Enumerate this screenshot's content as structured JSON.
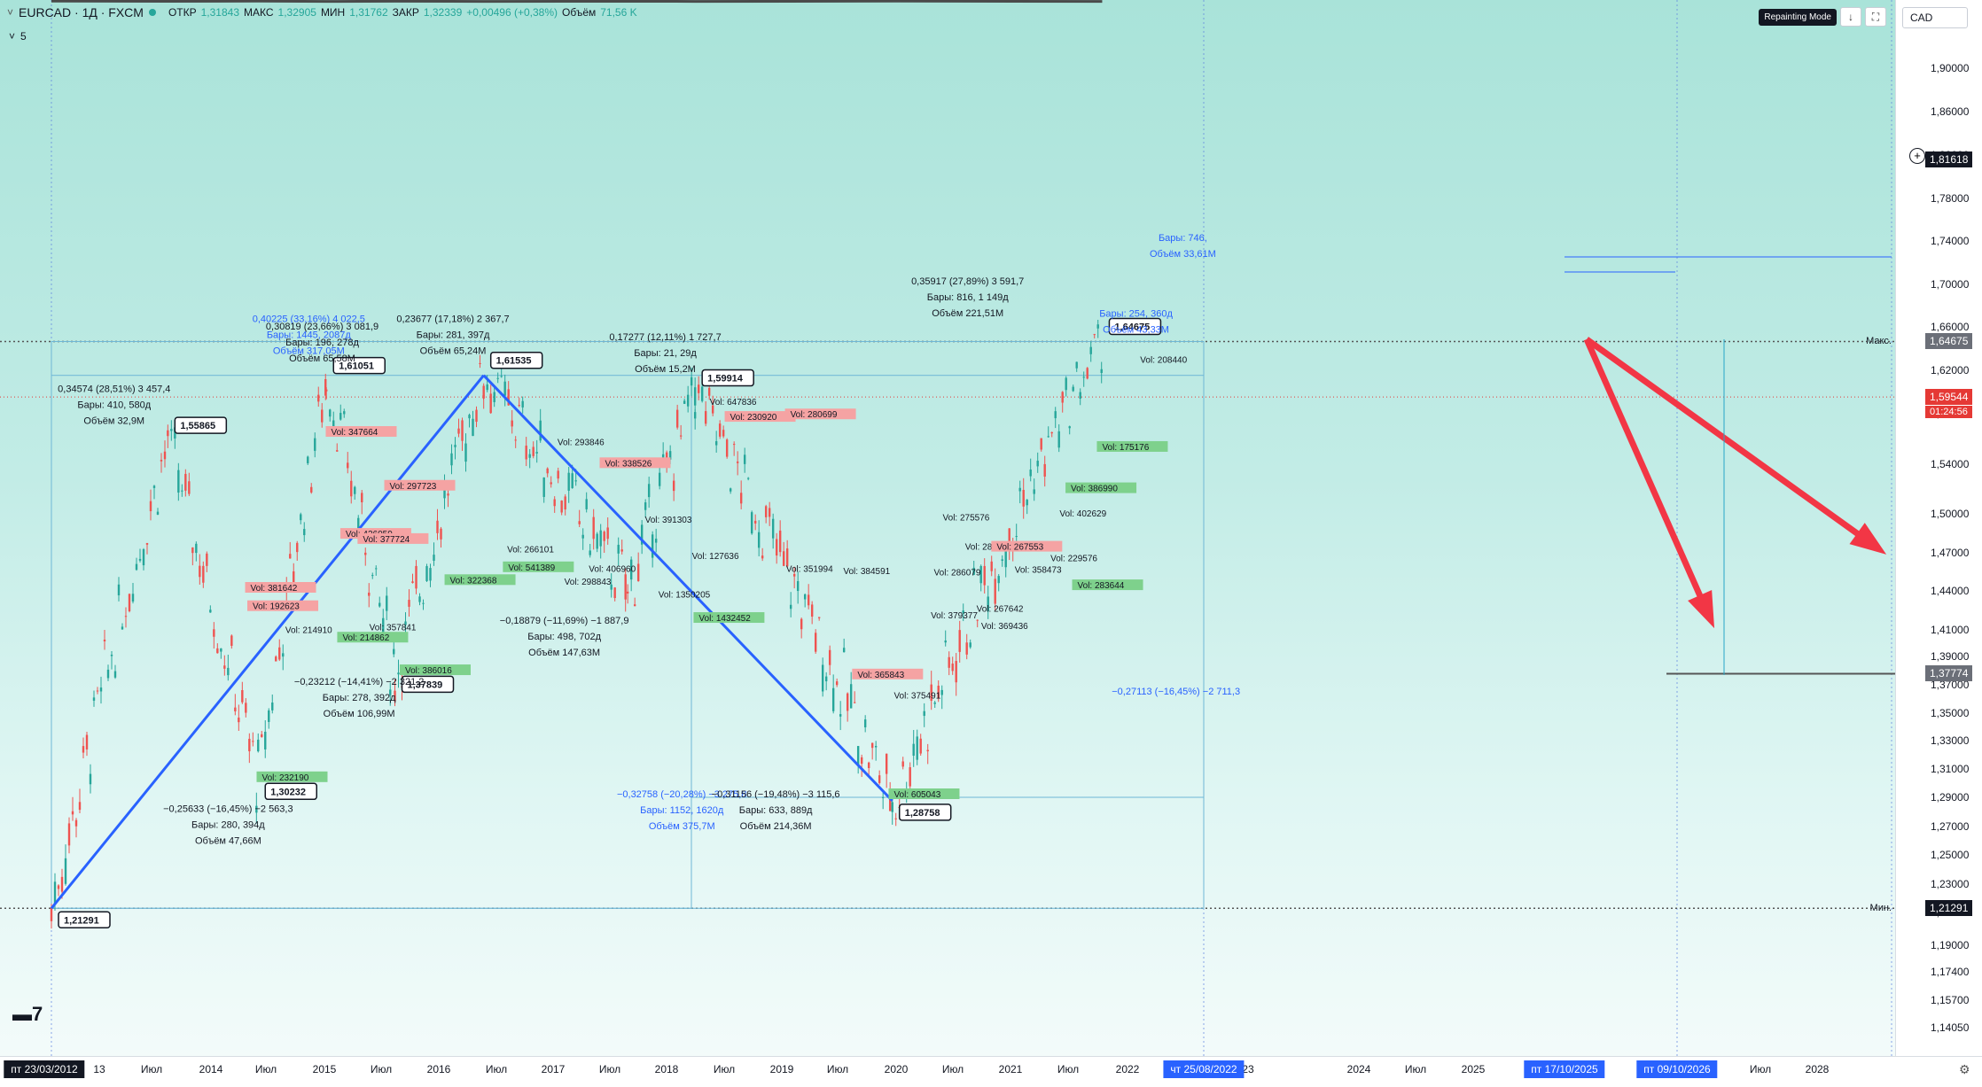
{
  "header": {
    "symbol": "EURCAD · 1Д · FXCM",
    "open_label": "ОТКР",
    "open": "1,31843",
    "high_label": "МАКС",
    "high": "1,32905",
    "low_label": "МИН",
    "low": "1,31762",
    "close_label": "ЗАКР",
    "close": "1,32339",
    "change": "+0,00496 (+0,38%)",
    "volume_label": "Объём",
    "volume": "71,56 K",
    "collapse_count": "5",
    "repainting_badge": "Repainting Mode",
    "currency": "CAD"
  },
  "colors": {
    "up": "#26a69a",
    "down": "#ef5350",
    "zigzag": "#4a4a4a",
    "blue_line": "#2962ff",
    "arrow": "#f23645",
    "resistance": "#e53935",
    "support": "#1e3fd8",
    "vol_red": "#f5a3a3",
    "vol_green": "#7ed18c"
  },
  "chart_data": {
    "type": "candlestick",
    "title": "EURCAD · 1Д · FXCM",
    "ylim": [
      1.13,
      1.95
    ],
    "y_ticks": [
      "1,90000",
      "1,86000",
      "1,82000",
      "1,78000",
      "1,74000",
      "1,70000",
      "1,66000",
      "1,62000",
      "1,58000",
      "1,54000",
      "1,50000",
      "1,47000",
      "1,44000",
      "1,41000",
      "1,39000",
      "1,37000",
      "1,35000",
      "1,33000",
      "1,31000",
      "1,29000",
      "1,27000",
      "1,25000",
      "1,23000",
      "1,21000",
      "1,19000",
      "1,17400",
      "1,15700",
      "1,14050"
    ],
    "x_ticks": [
      "13",
      "Июл",
      "2014",
      "Июл",
      "2015",
      "Июл",
      "2016",
      "Июл",
      "2017",
      "Июл",
      "2018",
      "Июл",
      "2019",
      "Июл",
      "2020",
      "Июл",
      "2021",
      "Июл",
      "2022",
      "23",
      "2024",
      "Июл",
      "2025",
      "Июл",
      "2028"
    ],
    "date_badges": [
      "пт 23/03/2012",
      "чт 25/08/2022",
      "пт 17/10/2025",
      "пт 09/10/2026"
    ],
    "price_labels": {
      "crosshair": "1,81618",
      "max_label": "Макс.",
      "max": "1,64675",
      "current": "1,59544",
      "countdown": "01:24:56",
      "target": "1,37774",
      "min_label": "Мин.",
      "min": "1,21291"
    },
    "pivots": [
      {
        "x": "2012-03-23",
        "y": 1.21291,
        "label": "1,21291"
      },
      {
        "x": "2013-09-01",
        "y": 1.55865,
        "label": "1,55865"
      },
      {
        "x": "2014-10-15",
        "y": 1.30232,
        "label": "1,30232"
      },
      {
        "x": "2015-08-20",
        "y": 1.61051,
        "label": "1,61051"
      },
      {
        "x": "2016-06-25",
        "y": 1.37839,
        "label": "1,37839"
      },
      {
        "x": "2017-08-01",
        "y": 1.61535,
        "label": "1,61535"
      },
      {
        "x": "2019-05-15",
        "y": 1.44,
        "label": ""
      },
      {
        "x": "2020-03-15",
        "y": 1.59914,
        "label": "1,59914"
      },
      {
        "x": "2022-08-25",
        "y": 1.28758,
        "label": "1,28758"
      },
      {
        "x": "2025-04-01",
        "y": 1.64675,
        "label": "1,64675"
      }
    ],
    "annotations": [
      {
        "x": "2013-01-01",
        "y": 1.6,
        "lines": [
          "0,34574 (28,51%) 3 457,4",
          "Бары: 410, 580д",
          "Объём 32,9М"
        ]
      },
      {
        "x": "2014-06-01",
        "y": 1.28,
        "lines": [
          "−0,25633 (−16,45%) −2 563,3",
          "Бары: 280, 394д",
          "Объём 47,66М"
        ]
      },
      {
        "x": "2015-06-01",
        "y": 1.665,
        "blue": true,
        "lines": [
          "0,40225 (33,16%) 4 022,5",
          "Бары: 1445, 2087д",
          "Объём 317,05М"
        ]
      },
      {
        "x": "2015-08-01",
        "y": 1.658,
        "lines": [
          "0,30819 (23,66%) 3 081,9",
          "Бары: 196, 278д",
          "Объём 65,58М"
        ]
      },
      {
        "x": "2016-01-15",
        "y": 1.37,
        "lines": [
          "−0,23212 (−14,41%) −2 321,2",
          "Бары: 278, 392д",
          "Объём 106,99М"
        ]
      },
      {
        "x": "2017-03-15",
        "y": 1.665,
        "lines": [
          "0,23677 (17,18%) 2 367,7",
          "Бары: 281, 397д",
          "Объём 65,24М"
        ]
      },
      {
        "x": "2018-08-01",
        "y": 1.415,
        "lines": [
          "−0,18879 (−11,69%) −1 887,9",
          "Бары: 498, 702д",
          "Объём 147,63М"
        ]
      },
      {
        "x": "2019-11-01",
        "y": 1.648,
        "lines": [
          "0,17277 (12,11%) 1 727,7",
          "Бары: 21, 29д",
          "Объём 15,2М"
        ]
      },
      {
        "x": "2020-01-15",
        "y": 1.29,
        "blue": true,
        "lines": [
          "−0,32758 (−20,28%) −3 275,8",
          "Бары: 1152, 1620д",
          "Объём 375,7М"
        ]
      },
      {
        "x": "2021-03-15",
        "y": 1.29,
        "lines": [
          "−0,31156 (−19,48%) −3 115,6",
          "Бары: 633, 889д",
          "Объём 214,36М"
        ]
      },
      {
        "x": "2023-08-01",
        "y": 1.7,
        "lines": [
          "0,35917 (27,89%) 3 591,7",
          "Бары: 816, 1 149д",
          "Объём 221,51М"
        ]
      },
      {
        "x": "2025-09-01",
        "y": 1.67,
        "blue": true,
        "lines": [
          "Бары: 254, 360д",
          "Объём 43,33М"
        ]
      },
      {
        "x": "2026-04-01",
        "y": 1.74,
        "blue": true,
        "lines": [
          "Бары: 746,",
          "Объём 33,61М"
        ]
      },
      {
        "x": "2026-03-01",
        "y": 1.363,
        "blue": true,
        "lines": [
          "−0,27113 (−16,45%) −2 711,3"
        ]
      }
    ],
    "vol_labels": [
      {
        "x": "2014-09-10",
        "y": 1.44,
        "t": "Vol: 381642",
        "c": "red"
      },
      {
        "x": "2014-09-20",
        "y": 1.426,
        "t": "Vol: 192623",
        "c": "red"
      },
      {
        "x": "2015-02-15",
        "y": 1.408,
        "t": "Vol: 214910",
        "c": "plain"
      },
      {
        "x": "2015-09-10",
        "y": 1.563,
        "t": "Vol: 347664",
        "c": "red"
      },
      {
        "x": "2015-11-15",
        "y": 1.482,
        "t": "Vol: 426059",
        "c": "red"
      },
      {
        "x": "2016-02-01",
        "y": 1.478,
        "t": "Vol: 377724",
        "c": "red"
      },
      {
        "x": "2016-06-01",
        "y": 1.52,
        "t": "Vol: 297723",
        "c": "red"
      },
      {
        "x": "2015-11-01",
        "y": 1.402,
        "t": "Vol: 214862",
        "c": "green"
      },
      {
        "x": "2016-03-01",
        "y": 1.41,
        "t": "Vol: 357841",
        "c": "plain"
      },
      {
        "x": "2016-08-10",
        "y": 1.378,
        "t": "Vol: 386016",
        "c": "green"
      },
      {
        "x": "2014-11-01",
        "y": 1.302,
        "t": "Vol: 232190",
        "c": "green"
      },
      {
        "x": "2017-11-15",
        "y": 1.47,
        "t": "Vol: 266101",
        "c": "plain"
      },
      {
        "x": "2018-01-01",
        "y": 1.455,
        "t": "Vol: 315693",
        "c": "plain"
      },
      {
        "x": "2017-11-20",
        "y": 1.456,
        "t": "Vol: 541389",
        "c": "green"
      },
      {
        "x": "2017-03-01",
        "y": 1.446,
        "t": "Vol: 322368",
        "c": "green"
      },
      {
        "x": "2018-07-01",
        "y": 1.555,
        "t": "Vol: 293846",
        "c": "plain"
      },
      {
        "x": "2019-02-01",
        "y": 1.538,
        "t": "Vol: 338526",
        "c": "red"
      },
      {
        "x": "2019-08-01",
        "y": 1.493,
        "t": "Vol: 391303",
        "c": "plain"
      },
      {
        "x": "2018-11-20",
        "y": 1.455,
        "t": "Vol: 406960",
        "c": "plain"
      },
      {
        "x": "2018-08-01",
        "y": 1.445,
        "t": "Vol: 298843",
        "c": "plain"
      },
      {
        "x": "2020-03-01",
        "y": 1.465,
        "t": "Vol: 127636",
        "c": "plain"
      },
      {
        "x": "2019-10-01",
        "y": 1.435,
        "t": "Vol: 1350205",
        "c": "plain"
      },
      {
        "x": "2020-04-01",
        "y": 1.417,
        "t": "Vol: 1432452",
        "c": "green"
      },
      {
        "x": "2020-05-20",
        "y": 1.588,
        "t": "Vol: 647836",
        "c": "plain"
      },
      {
        "x": "2020-08-20",
        "y": 1.575,
        "t": "Vol: 230920",
        "c": "red"
      },
      {
        "x": "2021-05-20",
        "y": 1.577,
        "t": "Vol: 280699",
        "c": "red"
      },
      {
        "x": "2021-05-01",
        "y": 1.455,
        "t": "Vol: 351994",
        "c": "plain"
      },
      {
        "x": "2022-01-15",
        "y": 1.453,
        "t": "Vol: 384591",
        "c": "plain"
      },
      {
        "x": "2022-03-20",
        "y": 1.375,
        "t": "Vol: 365843",
        "c": "red"
      },
      {
        "x": "2022-09-01",
        "y": 1.36,
        "t": "Vol: 375491",
        "c": "plain"
      },
      {
        "x": "2022-09-01",
        "y": 1.29,
        "t": "Vol: 605043",
        "c": "green"
      },
      {
        "x": "2023-04-10",
        "y": 1.495,
        "t": "Vol: 275576",
        "c": "plain"
      },
      {
        "x": "2023-03-01",
        "y": 1.452,
        "t": "Vol: 286079",
        "c": "plain"
      },
      {
        "x": "2023-02-15",
        "y": 1.419,
        "t": "Vol: 379377",
        "c": "plain"
      },
      {
        "x": "2023-07-20",
        "y": 1.472,
        "t": "Vol: 288997",
        "c": "plain"
      },
      {
        "x": "2023-12-10",
        "y": 1.472,
        "t": "Vol: 267553",
        "c": "red"
      },
      {
        "x": "2023-09-10",
        "y": 1.424,
        "t": "Vol: 267642",
        "c": "plain"
      },
      {
        "x": "2023-10-01",
        "y": 1.411,
        "t": "Vol: 369436",
        "c": "plain"
      },
      {
        "x": "2024-03-01",
        "y": 1.454,
        "t": "Vol: 358473",
        "c": "plain"
      },
      {
        "x": "2024-08-10",
        "y": 1.463,
        "t": "Vol: 229576",
        "c": "plain"
      },
      {
        "x": "2024-09-20",
        "y": 1.498,
        "t": "Vol: 402629",
        "c": "plain"
      },
      {
        "x": "2024-11-10",
        "y": 1.518,
        "t": "Vol: 386990",
        "c": "green"
      },
      {
        "x": "2024-12-10",
        "y": 1.442,
        "t": "Vol: 283644",
        "c": "green"
      },
      {
        "x": "2025-04-01",
        "y": 1.551,
        "t": "Vol: 175176",
        "c": "green"
      },
      {
        "x": "2025-09-20",
        "y": 1.627,
        "t": "Vol: 208440",
        "c": "plain"
      }
    ]
  }
}
